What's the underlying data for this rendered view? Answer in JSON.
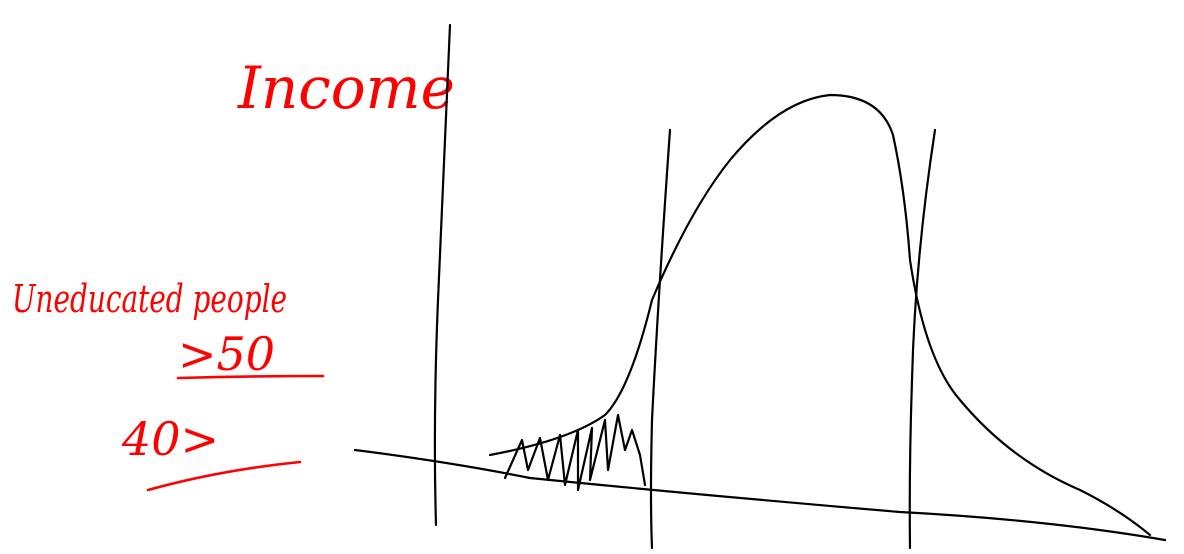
{
  "labels": {
    "title": "Income",
    "group": "Uneducated people",
    "upper": ">50",
    "lower": "40>"
  }
}
